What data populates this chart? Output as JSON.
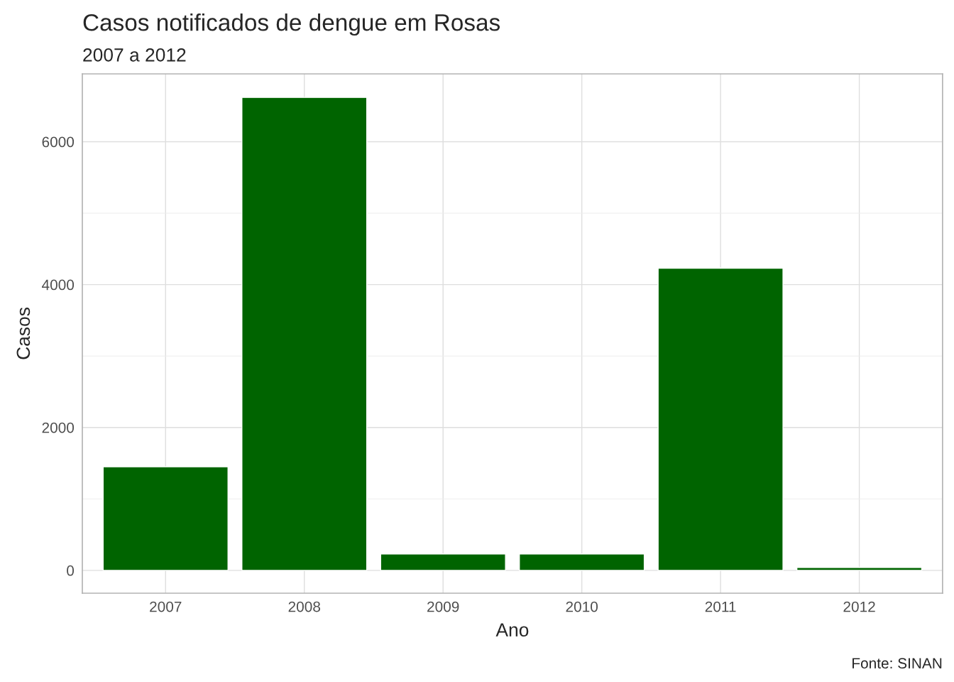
{
  "chart_data": {
    "type": "bar",
    "title": "Casos notificados de dengue em Rosas",
    "subtitle": "2007 a 2012",
    "xlabel": "Ano",
    "ylabel": "Casos",
    "categories": [
      "2007",
      "2008",
      "2009",
      "2010",
      "2011",
      "2012"
    ],
    "values": [
      1450,
      6620,
      230,
      230,
      4230,
      40
    ],
    "color": "#006400",
    "ylim": [
      -320,
      6950
    ],
    "yticks": [
      0,
      2000,
      4000,
      6000
    ],
    "grid": true,
    "annotations": [
      "Fonte: SINAN"
    ]
  }
}
